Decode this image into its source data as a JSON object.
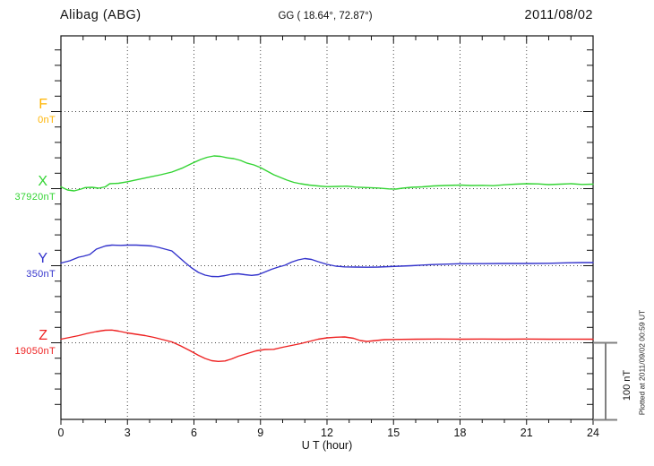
{
  "header": {
    "station": "Alibag (ABG)",
    "coordinates": "GG ( 18.64°,  72.87°)",
    "date": "2011/08/02"
  },
  "x_axis": {
    "label": "U T (hour)",
    "tick_labels": [
      "0",
      "3",
      "6",
      "9",
      "12",
      "15",
      "18",
      "21",
      "24"
    ]
  },
  "scale_bar": {
    "label": "100 nT",
    "span_nT": 100
  },
  "footer_note": "Plotted at 2011/09/02 00:59 UT",
  "colors": {
    "F": "#ffb400",
    "X": "#33d433",
    "Y": "#3333cc",
    "Z": "#ee2222",
    "axis": "#111111",
    "grid": "#444444",
    "scale_bar": "#808080"
  },
  "chart_data": {
    "type": "line",
    "title": "Alibag (ABG) magnetogram 2011/08/02",
    "xlabel": "U T (hour)",
    "xlim": [
      0,
      24
    ],
    "x_major_ticks": [
      0,
      3,
      6,
      9,
      12,
      15,
      18,
      21,
      24
    ],
    "x_minor_tick_step_hours": 1,
    "y_minor_tick_step_nT": 20,
    "row_spacing_nT": 100,
    "grid": "dotted vertical lines every 3 h; dotted horizontal baseline per component",
    "legend_position": "left margin (component letter + baseline value)",
    "series": [
      {
        "name": "F",
        "base_label": "0nT",
        "base_value_nT": 0,
        "color": "#ffb400",
        "points": []
      },
      {
        "name": "X",
        "base_label": "37920nT",
        "base_value_nT": 37920,
        "color": "#33d433",
        "points": [
          [
            0,
            2.3
          ],
          [
            0.3,
            -1.7
          ],
          [
            0.6,
            -2.9
          ],
          [
            0.9,
            -0.6
          ],
          [
            1.1,
            1.4
          ],
          [
            1.4,
            1.7
          ],
          [
            1.7,
            0.6
          ],
          [
            2.0,
            2.3
          ],
          [
            2.2,
            6.4
          ],
          [
            2.6,
            7.0
          ],
          [
            3.0,
            9.0
          ],
          [
            3.5,
            12.0
          ],
          [
            4.0,
            15.0
          ],
          [
            4.5,
            18.0
          ],
          [
            5.0,
            21.5
          ],
          [
            5.5,
            27.0
          ],
          [
            6.0,
            34.0
          ],
          [
            6.3,
            37.8
          ],
          [
            6.6,
            40.7
          ],
          [
            6.9,
            42.4
          ],
          [
            7.2,
            41.9
          ],
          [
            7.5,
            40.0
          ],
          [
            7.8,
            39.0
          ],
          [
            8.1,
            36.6
          ],
          [
            8.4,
            33.0
          ],
          [
            8.7,
            30.8
          ],
          [
            9.0,
            27.3
          ],
          [
            9.3,
            22.7
          ],
          [
            9.6,
            18.0
          ],
          [
            9.9,
            14.5
          ],
          [
            10.2,
            11.0
          ],
          [
            10.5,
            8.1
          ],
          [
            10.8,
            6.4
          ],
          [
            11.2,
            4.7
          ],
          [
            11.6,
            3.5
          ],
          [
            12.0,
            2.6
          ],
          [
            12.5,
            2.9
          ],
          [
            12.9,
            3.3
          ],
          [
            13.3,
            2.0
          ],
          [
            13.8,
            1.4
          ],
          [
            14.3,
            0.8
          ],
          [
            14.8,
            -0.3
          ],
          [
            15.1,
            -0.6
          ],
          [
            15.4,
            0.6
          ],
          [
            15.8,
            1.7
          ],
          [
            16.3,
            2.3
          ],
          [
            16.8,
            3.5
          ],
          [
            17.3,
            4.1
          ],
          [
            18.0,
            4.7
          ],
          [
            18.5,
            4.1
          ],
          [
            19.0,
            4.3
          ],
          [
            19.5,
            3.8
          ],
          [
            20.0,
            5.0
          ],
          [
            20.5,
            5.8
          ],
          [
            21.0,
            6.4
          ],
          [
            21.5,
            6.2
          ],
          [
            22.0,
            5.2
          ],
          [
            22.5,
            5.8
          ],
          [
            23.0,
            6.4
          ],
          [
            23.5,
            5.5
          ],
          [
            24.0,
            5.8
          ]
        ]
      },
      {
        "name": "Y",
        "base_label": "350nT",
        "base_value_nT": 350,
        "color": "#3333cc",
        "points": [
          [
            0,
            3.5
          ],
          [
            0.4,
            6.4
          ],
          [
            0.8,
            11.0
          ],
          [
            1.0,
            12.2
          ],
          [
            1.3,
            14.5
          ],
          [
            1.6,
            21.5
          ],
          [
            2.0,
            25.6
          ],
          [
            2.3,
            26.7
          ],
          [
            2.7,
            26.4
          ],
          [
            3.0,
            26.7
          ],
          [
            3.4,
            26.7
          ],
          [
            3.8,
            26.2
          ],
          [
            4.1,
            25.6
          ],
          [
            4.4,
            23.8
          ],
          [
            4.7,
            21.5
          ],
          [
            5.0,
            19.2
          ],
          [
            5.3,
            11.6
          ],
          [
            5.6,
            4.1
          ],
          [
            5.9,
            -2.9
          ],
          [
            6.2,
            -8.7
          ],
          [
            6.5,
            -12.2
          ],
          [
            6.8,
            -14.0
          ],
          [
            7.1,
            -14.2
          ],
          [
            7.4,
            -12.8
          ],
          [
            7.7,
            -11.0
          ],
          [
            8.0,
            -10.5
          ],
          [
            8.3,
            -11.6
          ],
          [
            8.6,
            -12.6
          ],
          [
            8.9,
            -11.6
          ],
          [
            9.2,
            -8.1
          ],
          [
            9.5,
            -4.7
          ],
          [
            9.8,
            -1.7
          ],
          [
            10.1,
            0.6
          ],
          [
            10.4,
            4.7
          ],
          [
            10.7,
            7.6
          ],
          [
            11.0,
            9.3
          ],
          [
            11.3,
            8.1
          ],
          [
            11.6,
            5.2
          ],
          [
            12.0,
            1.7
          ],
          [
            12.4,
            -0.6
          ],
          [
            12.8,
            -1.5
          ],
          [
            13.3,
            -1.7
          ],
          [
            13.8,
            -2.0
          ],
          [
            14.3,
            -1.7
          ],
          [
            14.8,
            -1.2
          ],
          [
            15.3,
            -0.6
          ],
          [
            15.8,
            0.0
          ],
          [
            16.3,
            0.8
          ],
          [
            16.8,
            1.5
          ],
          [
            17.3,
            2.0
          ],
          [
            18.0,
            2.6
          ],
          [
            19.0,
            2.7
          ],
          [
            20.0,
            2.9
          ],
          [
            21.0,
            2.9
          ],
          [
            22.0,
            3.1
          ],
          [
            23.0,
            3.8
          ],
          [
            23.5,
            4.1
          ],
          [
            24.0,
            4.1
          ]
        ]
      },
      {
        "name": "Z",
        "base_label": "19050nT",
        "base_value_nT": 19050,
        "color": "#ee2222",
        "points": [
          [
            0,
            4.7
          ],
          [
            0.4,
            7.0
          ],
          [
            0.8,
            9.3
          ],
          [
            1.2,
            12.2
          ],
          [
            1.6,
            14.5
          ],
          [
            2.0,
            16.3
          ],
          [
            2.3,
            16.5
          ],
          [
            2.6,
            15.1
          ],
          [
            3.0,
            12.8
          ],
          [
            3.4,
            11.0
          ],
          [
            3.8,
            9.3
          ],
          [
            4.2,
            7.0
          ],
          [
            4.6,
            4.1
          ],
          [
            5.0,
            1.2
          ],
          [
            5.4,
            -4.1
          ],
          [
            5.8,
            -9.9
          ],
          [
            6.2,
            -16.3
          ],
          [
            6.5,
            -20.3
          ],
          [
            6.8,
            -23.3
          ],
          [
            7.1,
            -24.2
          ],
          [
            7.4,
            -23.6
          ],
          [
            7.7,
            -20.9
          ],
          [
            8.0,
            -17.4
          ],
          [
            8.4,
            -14.0
          ],
          [
            8.8,
            -10.5
          ],
          [
            9.2,
            -8.7
          ],
          [
            9.6,
            -8.5
          ],
          [
            10.0,
            -5.8
          ],
          [
            10.4,
            -3.5
          ],
          [
            10.8,
            -1.2
          ],
          [
            11.2,
            1.7
          ],
          [
            11.6,
            4.7
          ],
          [
            12.0,
            6.4
          ],
          [
            12.4,
            7.2
          ],
          [
            12.8,
            7.6
          ],
          [
            13.2,
            5.8
          ],
          [
            13.5,
            2.9
          ],
          [
            13.8,
            1.7
          ],
          [
            14.2,
            2.9
          ],
          [
            14.6,
            4.1
          ],
          [
            15.0,
            4.3
          ],
          [
            16.0,
            4.7
          ],
          [
            17.0,
            4.9
          ],
          [
            18.0,
            4.7
          ],
          [
            19.0,
            4.9
          ],
          [
            20.0,
            4.7
          ],
          [
            21.0,
            4.9
          ],
          [
            22.0,
            4.7
          ],
          [
            23.0,
            4.8
          ],
          [
            24.0,
            4.7
          ]
        ]
      }
    ]
  }
}
